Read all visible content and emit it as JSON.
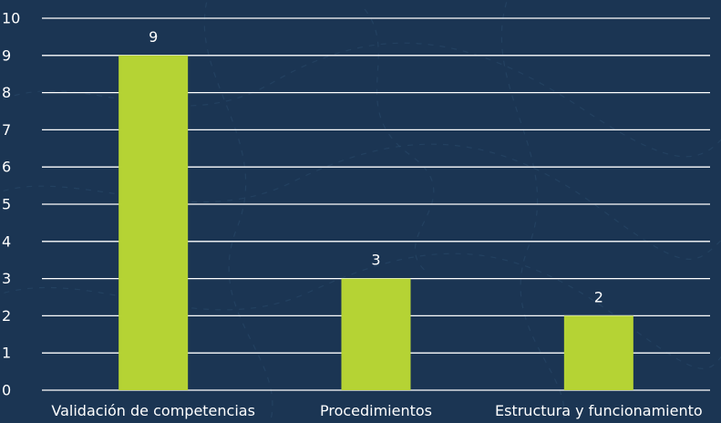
{
  "chart_data": {
    "type": "bar",
    "categories": [
      "Validación de competencias",
      "Procedimientos",
      "Estructura y funcionamiento"
    ],
    "values": [
      9,
      3,
      2
    ],
    "data_labels": [
      "9",
      "3",
      "2"
    ],
    "y_ticks": [
      "0",
      "1",
      "2",
      "3",
      "4",
      "5",
      "6",
      "7",
      "8",
      "9",
      "10"
    ],
    "ylim": [
      0,
      10
    ],
    "title": "",
    "xlabel": "",
    "ylabel": "",
    "grid": true,
    "bar_color": "#b5d334",
    "background_color": "#1b3553",
    "text_color": "#ffffff",
    "grid_color": "#ffffff"
  }
}
